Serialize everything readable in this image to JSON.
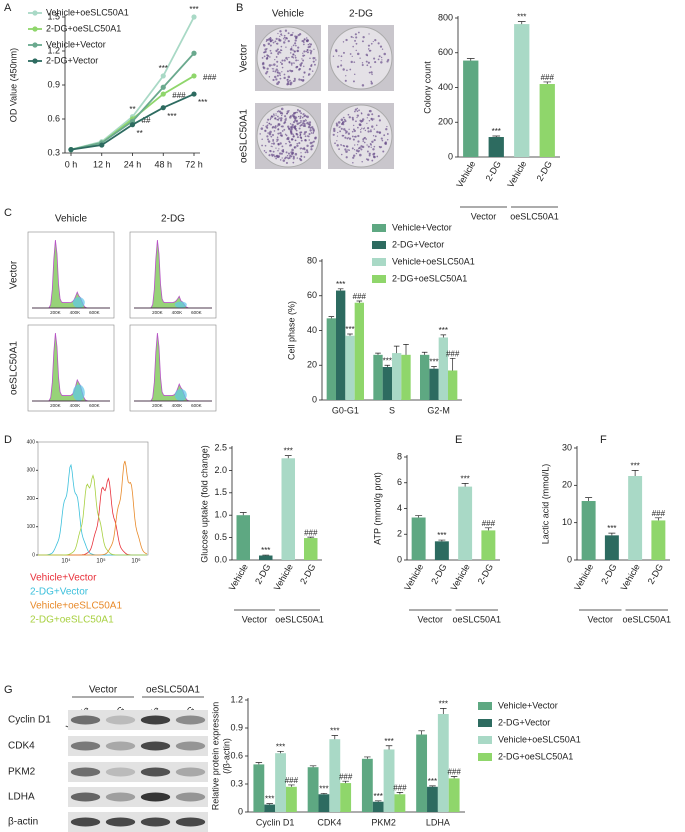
{
  "chart_data": [
    {
      "panel": "A",
      "type": "line",
      "ylabel": "OD Value (450nm)",
      "categories": [
        "0 h",
        "12 h",
        "24 h",
        "48 h",
        "72 h"
      ],
      "ylim": [
        0.3,
        1.5
      ],
      "yticks": [
        0.3,
        0.6,
        0.9,
        1.2,
        1.5
      ],
      "series": [
        {
          "name": "Vehicle+oeSLC50A1",
          "color": "#a9d9c6",
          "values": [
            0.33,
            0.4,
            0.62,
            0.98,
            1.5
          ],
          "sig": [
            null,
            null,
            "**",
            "***",
            "***"
          ]
        },
        {
          "name": "2-DG+oeSLC50A1",
          "color": "#8fd66b",
          "values": [
            0.33,
            0.39,
            0.6,
            0.82,
            0.98
          ],
          "sig": [
            null,
            null,
            "##",
            "###",
            "###"
          ]
        },
        {
          "name": "Vehicle+Vector",
          "color": "#6aa98e",
          "values": [
            0.33,
            0.39,
            0.58,
            0.88,
            1.18
          ]
        },
        {
          "name": "2-DG+Vector",
          "color": "#2d6b60",
          "values": [
            0.33,
            0.37,
            0.55,
            0.7,
            0.82
          ],
          "sig": [
            null,
            null,
            "**",
            "***",
            "***"
          ]
        }
      ]
    },
    {
      "panel": "B",
      "type": "bar",
      "ylabel": "Colony count",
      "image": {
        "columns": [
          "Vehicle",
          "2-DG"
        ],
        "rows": [
          "Vector",
          "oeSLC50A1"
        ]
      },
      "categories": [
        "Vehicle",
        "2-DG",
        "Vehicle",
        "2-DG"
      ],
      "groups": [
        "Vector",
        "oeSLC50A1"
      ],
      "values": [
        555,
        115,
        765,
        420
      ],
      "errors": [
        12,
        6,
        15,
        12
      ],
      "sig": [
        null,
        "***",
        "***",
        "###"
      ],
      "colors": [
        "#5ea882",
        "#2d6b60",
        "#a9d9c6",
        "#8fd66b"
      ],
      "ylim": [
        0,
        800
      ],
      "yticks": [
        0,
        200,
        400,
        600,
        800
      ]
    },
    {
      "panel": "C",
      "type": "bar",
      "ylabel": "Cell phase (%)",
      "image": {
        "columns": [
          "Vehicle",
          "2-DG"
        ],
        "rows": [
          "Vector",
          "oeSLC50A1"
        ],
        "xticks": [
          "200K",
          "400K",
          "600K"
        ]
      },
      "categories": [
        "G0-G1",
        "S",
        "G2-M"
      ],
      "series": [
        {
          "name": "Vehicle+Vector",
          "color": "#5ea882",
          "values": [
            47,
            26,
            26
          ],
          "errors": [
            1,
            1,
            1.5
          ]
        },
        {
          "name": "2-DG+Vector",
          "color": "#2d6b60",
          "values": [
            63,
            19,
            18
          ],
          "errors": [
            1,
            1,
            1.2
          ],
          "sig": [
            "***",
            "***",
            "***"
          ]
        },
        {
          "name": "Vehicle+oeSLC50A1",
          "color": "#a9d9c6",
          "values": [
            37,
            27,
            36
          ],
          "errors": [
            1,
            4,
            1.5
          ],
          "sig": [
            "***",
            null,
            "***"
          ]
        },
        {
          "name": "2-DG+oeSLC50A1",
          "color": "#8fd66b",
          "values": [
            56,
            26,
            17
          ],
          "errors": [
            1,
            6,
            7
          ],
          "sig": [
            "###",
            null,
            "###"
          ]
        }
      ],
      "ylim": [
        0,
        80
      ],
      "yticks": [
        0,
        20,
        40,
        60,
        80
      ]
    },
    {
      "panel": "D",
      "type": "bar",
      "ylabel": "Glucose uptake (fold change)",
      "image": {
        "ylim": [
          0,
          400
        ],
        "yticks": [
          0,
          100,
          200,
          300,
          400
        ],
        "xticks": [
          "10⁴",
          "10⁵",
          "10⁶"
        ],
        "legend": [
          {
            "name": "Vehicle+Vector",
            "color": "#e8303a"
          },
          {
            "name": "2-DG+Vector",
            "color": "#3cc0dc"
          },
          {
            "name": "Vehicle+oeSLC50A1",
            "color": "#e88a2a"
          },
          {
            "name": "2-DG+oeSLC50A1",
            "color": "#a8d040"
          }
        ]
      },
      "categories": [
        "Vehicle",
        "2-DG",
        "Vehicle",
        "2-DG"
      ],
      "groups": [
        "Vector",
        "oeSLC50A1"
      ],
      "values": [
        1.0,
        0.1,
        2.27,
        0.49
      ],
      "errors": [
        0.06,
        0.01,
        0.06,
        0.02
      ],
      "sig": [
        null,
        "***",
        "***",
        "###"
      ],
      "colors": [
        "#5ea882",
        "#2d6b60",
        "#a9d9c6",
        "#8fd66b"
      ],
      "ylim": [
        0,
        2.5
      ],
      "yticks": [
        {
          "value": 0,
          "label": "0.0"
        },
        0.5,
        {
          "value": 1,
          "label": "1.0"
        },
        1.5,
        {
          "value": 2,
          "label": "2.0"
        },
        2.5
      ]
    },
    {
      "panel": "E",
      "type": "bar",
      "ylabel": "ATP (mmol/g prot)",
      "categories": [
        "Vehicle",
        "2-DG",
        "Vehicle",
        "2-DG"
      ],
      "groups": [
        "Vector",
        "oeSLC50A1"
      ],
      "values": [
        3.3,
        1.45,
        5.7,
        2.3
      ],
      "errors": [
        0.15,
        0.1,
        0.25,
        0.2
      ],
      "sig": [
        null,
        "***",
        "***",
        "###"
      ],
      "colors": [
        "#5ea882",
        "#2d6b60",
        "#a9d9c6",
        "#8fd66b"
      ],
      "ylim": [
        0,
        8
      ],
      "yticks": [
        0,
        2,
        4,
        6,
        8
      ]
    },
    {
      "panel": "F",
      "type": "bar",
      "ylabel": "Lactic acid (mmol/L)",
      "categories": [
        "Vehicle",
        "2-DG",
        "Vehicle",
        "2-DG"
      ],
      "groups": [
        "Vector",
        "oeSLC50A1"
      ],
      "values": [
        15.8,
        6.6,
        22.5,
        10.6
      ],
      "errors": [
        0.9,
        0.6,
        1.5,
        0.7
      ],
      "sig": [
        null,
        "***",
        "***",
        "###"
      ],
      "colors": [
        "#5ea882",
        "#2d6b60",
        "#a9d9c6",
        "#8fd66b"
      ],
      "ylim": [
        0,
        30
      ],
      "yticks": [
        0,
        10,
        20,
        30
      ]
    },
    {
      "panel": "G",
      "type": "bar",
      "ylabel": [
        "Relative protein expression",
        "(/β-actin)"
      ],
      "image": {
        "groups": [
          "Vector",
          "oeSLC50A1"
        ],
        "columns": [
          "Vehicle",
          "2-DG",
          "Vehicle",
          "2-DG"
        ],
        "rows": [
          "Cyclin D1",
          "CDK4",
          "PKM2",
          "LDHA",
          "β-actin"
        ]
      },
      "categories": [
        "Cyclin D1",
        "CDK4",
        "PKM2",
        "LDHA"
      ],
      "series": [
        {
          "name": "Vehicle+Vector",
          "color": "#5ea882",
          "values": [
            0.51,
            0.48,
            0.57,
            0.83
          ],
          "errors": [
            0.02,
            0.015,
            0.02,
            0.04
          ]
        },
        {
          "name": "2-DG+Vector",
          "color": "#2d6b60",
          "values": [
            0.08,
            0.19,
            0.11,
            0.27
          ],
          "errors": [
            0.01,
            0.01,
            0.01,
            0.01
          ],
          "sig": [
            "***",
            "***",
            "***",
            "***"
          ]
        },
        {
          "name": "Vehicle+oeSLC50A1",
          "color": "#a9d9c6",
          "values": [
            0.63,
            0.78,
            0.67,
            1.05
          ],
          "errors": [
            0.02,
            0.04,
            0.04,
            0.06
          ],
          "sig": [
            "***",
            "***",
            "***",
            "***"
          ]
        },
        {
          "name": "2-DG+oeSLC50A1",
          "color": "#8fd66b",
          "values": [
            0.27,
            0.31,
            0.19,
            0.36
          ],
          "errors": [
            0.02,
            0.02,
            0.02,
            0.02
          ],
          "sig": [
            "###",
            "###",
            "###",
            "###"
          ]
        }
      ],
      "ylim": [
        0,
        1.2
      ],
      "yticks": [
        0,
        0.3,
        0.6,
        0.9,
        1.2
      ]
    }
  ]
}
